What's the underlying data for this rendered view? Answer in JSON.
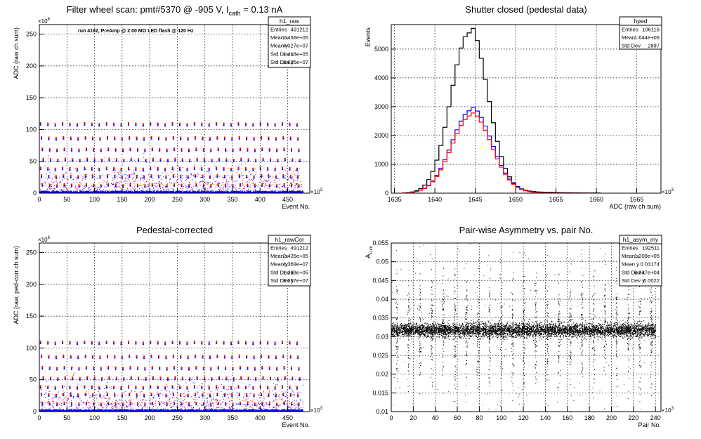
{
  "chart_data": [
    {
      "type": "scatter",
      "title": "Filter wheel scan: pmt#5370 @  -905 V, I",
      "title_sub": "cath",
      "title_tail": " = 0.13 nA",
      "annotation": "run 4182, PreAmp @ 2.00 MΩ LED flash @  120 Hz",
      "xlabel": "Event No.",
      "ylabel": "ADC (raw ch sum)",
      "x_multiplier": "×10",
      "x_multiplier_exp": "3",
      "y_multiplier": "×10",
      "y_multiplier_exp": "6",
      "xlim": [
        0,
        490
      ],
      "ylim": [
        0,
        265
      ],
      "x_ticks": [
        0,
        50,
        100,
        150,
        200,
        250,
        300,
        350,
        400,
        450
      ],
      "y_ticks": [
        0,
        50,
        100,
        150,
        200,
        250
      ],
      "grid": true,
      "levels": [
        110,
        88,
        70,
        54,
        40,
        28,
        14,
        4
      ],
      "x_end": 478,
      "series_colors": [
        "#ff0000",
        "#0000ff"
      ],
      "stats": {
        "name": "h1_raw",
        "rows": [
          [
            "Entries",
            "491212"
          ],
          [
            "Mean x",
            "2.456e+05"
          ],
          [
            "Mean y",
            "4.027e+07"
          ],
          [
            "Std Dev x",
            "1.418e+05"
          ],
          [
            "Std Dev y",
            "3.625e+07"
          ]
        ]
      }
    },
    {
      "type": "line",
      "title": "Shutter closed (pedestal data)",
      "xlabel": "ADC (raw ch sum)",
      "ylabel": "Events",
      "x_multiplier": "×10",
      "x_multiplier_exp": "3",
      "xlim": [
        1634.6,
        1668
      ],
      "ylim": [
        0,
        5850
      ],
      "x_ticks": [
        1635,
        1640,
        1645,
        1650,
        1655,
        1660,
        1665
      ],
      "y_ticks": [
        0,
        1000,
        2000,
        3000,
        4000,
        5000
      ],
      "grid": true,
      "series": [
        {
          "color": "#000000",
          "mean": 1644.0,
          "sigma": 2.25,
          "peak": 5560,
          "tail": 0.06
        },
        {
          "color": "#0000ff",
          "mean": 1644.3,
          "sigma": 2.45,
          "peak": 2880,
          "tail": 0.035
        },
        {
          "color": "#ff0000",
          "mean": 1644.3,
          "sigma": 2.45,
          "peak": 2700,
          "tail": 0.035
        }
      ],
      "stats": {
        "name": "hped",
        "rows": [
          [
            "Entries",
            "106116"
          ],
          [
            "Mean",
            "1.644e+06"
          ],
          [
            "Std Dev",
            "2897"
          ]
        ]
      }
    },
    {
      "type": "scatter",
      "title": "Pedestal-corrected",
      "xlabel": "Event No.",
      "ylabel": "ADC (raw, ped-corr ch sum)",
      "x_multiplier": "×10",
      "x_multiplier_exp": "3",
      "y_multiplier": "×10",
      "y_multiplier_exp": "6",
      "xlim": [
        0,
        490
      ],
      "ylim": [
        0,
        265
      ],
      "x_ticks": [
        0,
        50,
        100,
        150,
        200,
        250,
        300,
        350,
        400,
        450
      ],
      "y_ticks": [
        0,
        50,
        100,
        150,
        200,
        250
      ],
      "grid": true,
      "levels": [
        110,
        88,
        70,
        54,
        40,
        28,
        14,
        4
      ],
      "x_end": 478,
      "series_colors": [
        "#ff0000",
        "#0000ff"
      ],
      "stats": {
        "name": "h1_rawCor",
        "rows": [
          [
            "Entries",
            "491212"
          ],
          [
            "Mean x",
            "2.426e+05"
          ],
          [
            "Mean y",
            "4.369e+07"
          ],
          [
            "Std Dev x",
            "1.388e+05"
          ],
          [
            "Std Dev y",
            "3.557e+07"
          ]
        ]
      }
    },
    {
      "type": "scatter",
      "title": "Pair-wise Asymmetry vs. pair No.",
      "xlabel": "Pair No.",
      "ylabel": "A",
      "ylabel_sub": "Lum",
      "x_multiplier": "×10",
      "x_multiplier_exp": "3",
      "xlim": [
        0,
        245
      ],
      "ylim": [
        0.01,
        0.055
      ],
      "x_ticks": [
        0,
        20,
        40,
        60,
        80,
        100,
        120,
        140,
        160,
        180,
        200,
        220,
        240
      ],
      "y_ticks": [
        0.01,
        0.015,
        0.02,
        0.025,
        0.03,
        0.035,
        0.04,
        0.045,
        0.05,
        0.055
      ],
      "y_tick_labels": [
        "0.01",
        "0.015",
        "0.02",
        "0.025",
        "0.03",
        "0.035",
        "0.04",
        "0.045",
        "0.05",
        "0.055"
      ],
      "grid": true,
      "band_center": 0.0318,
      "band_halfwidth": 0.0016,
      "x_end": 240,
      "spike_period": 10.5,
      "stats": {
        "name": "h1_asym_my",
        "rows": [
          [
            "Entries",
            "192511"
          ],
          [
            "Mean x",
            "1.209e+05"
          ],
          [
            "Mean y",
            "0.03174"
          ],
          [
            "Std Dev x",
            "6.947e+04"
          ],
          [
            "Std Dev y",
            "0.0022"
          ]
        ]
      }
    }
  ]
}
